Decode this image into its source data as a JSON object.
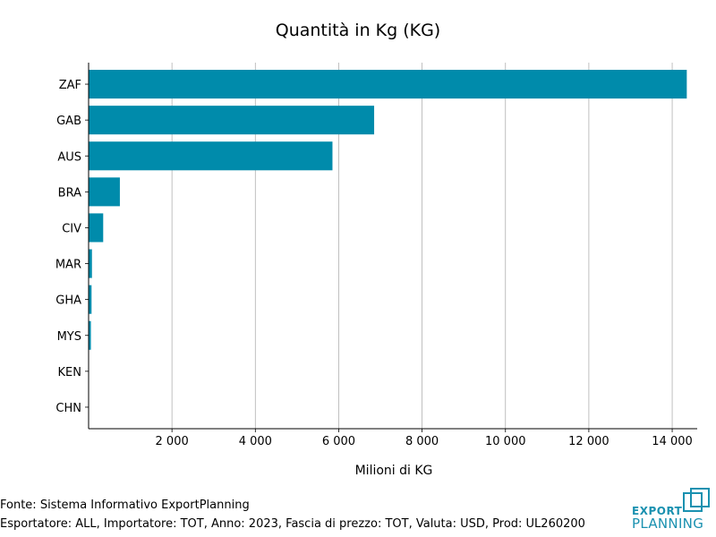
{
  "chart_data": {
    "type": "bar",
    "orientation": "horizontal",
    "title": "Quantità in Kg (KG)",
    "xlabel": "Milioni di KG",
    "ylabel": "",
    "categories": [
      "ZAF",
      "GAB",
      "AUS",
      "BRA",
      "CIV",
      "MAR",
      "GHA",
      "MYS",
      "KEN",
      "CHN"
    ],
    "values": [
      14350,
      6850,
      5850,
      750,
      350,
      80,
      70,
      55,
      10,
      5
    ],
    "xlim": [
      0,
      14600
    ],
    "xticks": [
      2000,
      4000,
      6000,
      8000,
      10000,
      12000,
      14000
    ],
    "xtick_labels": [
      "2 000",
      "4 000",
      "6 000",
      "8 000",
      "10 000",
      "12 000",
      "14 000"
    ],
    "grid": "x",
    "bar_color": "#008bab"
  },
  "footer": {
    "source": "Fonte: Sistema Informativo ExportPlanning",
    "meta": "Esportatore: ALL, Importatore: TOT, Anno: 2023, Fascia di prezzo: TOT, Valuta: USD, Prod: UL260200"
  },
  "logo": {
    "line1": "EXPORT",
    "line2": "PLANNING",
    "color": "#1a91b0"
  }
}
